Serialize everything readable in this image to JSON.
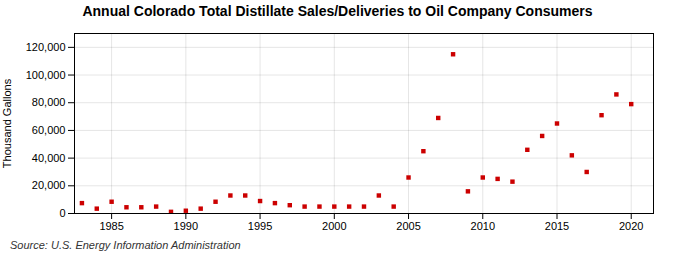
{
  "chart_data": {
    "type": "scatter",
    "title": "Annual Colorado Total Distillate Sales/Deliveries to Oil Company Consumers",
    "ylabel": "Thousand Gallons",
    "annotations": [
      "Source: U.S. Energy Information Administration"
    ],
    "x": [
      1983,
      1984,
      1985,
      1986,
      1987,
      1988,
      1989,
      1990,
      1991,
      1992,
      1993,
      1994,
      1995,
      1996,
      1997,
      1998,
      1999,
      2000,
      2001,
      2002,
      2003,
      2004,
      2005,
      2006,
      2007,
      2008,
      2009,
      2010,
      2011,
      2012,
      2013,
      2014,
      2015,
      2016,
      2017,
      2018,
      2019,
      2020
    ],
    "values": [
      7500,
      3500,
      8500,
      4500,
      4500,
      5000,
      1200,
      2000,
      3500,
      8500,
      13000,
      13000,
      9000,
      7500,
      6000,
      5000,
      5000,
      5000,
      5000,
      5000,
      13000,
      5000,
      26000,
      45000,
      69000,
      115000,
      16000,
      26000,
      25000,
      23000,
      46000,
      56000,
      65000,
      42000,
      30000,
      71000,
      86000,
      79000
    ],
    "color": "#cc0000",
    "marker": "square",
    "xlim": [
      1982.5,
      2021.5
    ],
    "xticks": [
      1985,
      1990,
      1995,
      2000,
      2005,
      2010,
      2015,
      2020
    ],
    "ylim": [
      0,
      130000
    ],
    "yticks": [
      0,
      {
        "value": 20000,
        "label": "20,000"
      },
      {
        "value": 40000,
        "label": "40,000"
      },
      {
        "value": 60000,
        "label": "60,000"
      },
      {
        "value": 80000,
        "label": "80,000"
      },
      {
        "value": 100000,
        "label": "100,000"
      },
      {
        "value": 120000,
        "label": "120,000"
      }
    ],
    "grid": true
  }
}
